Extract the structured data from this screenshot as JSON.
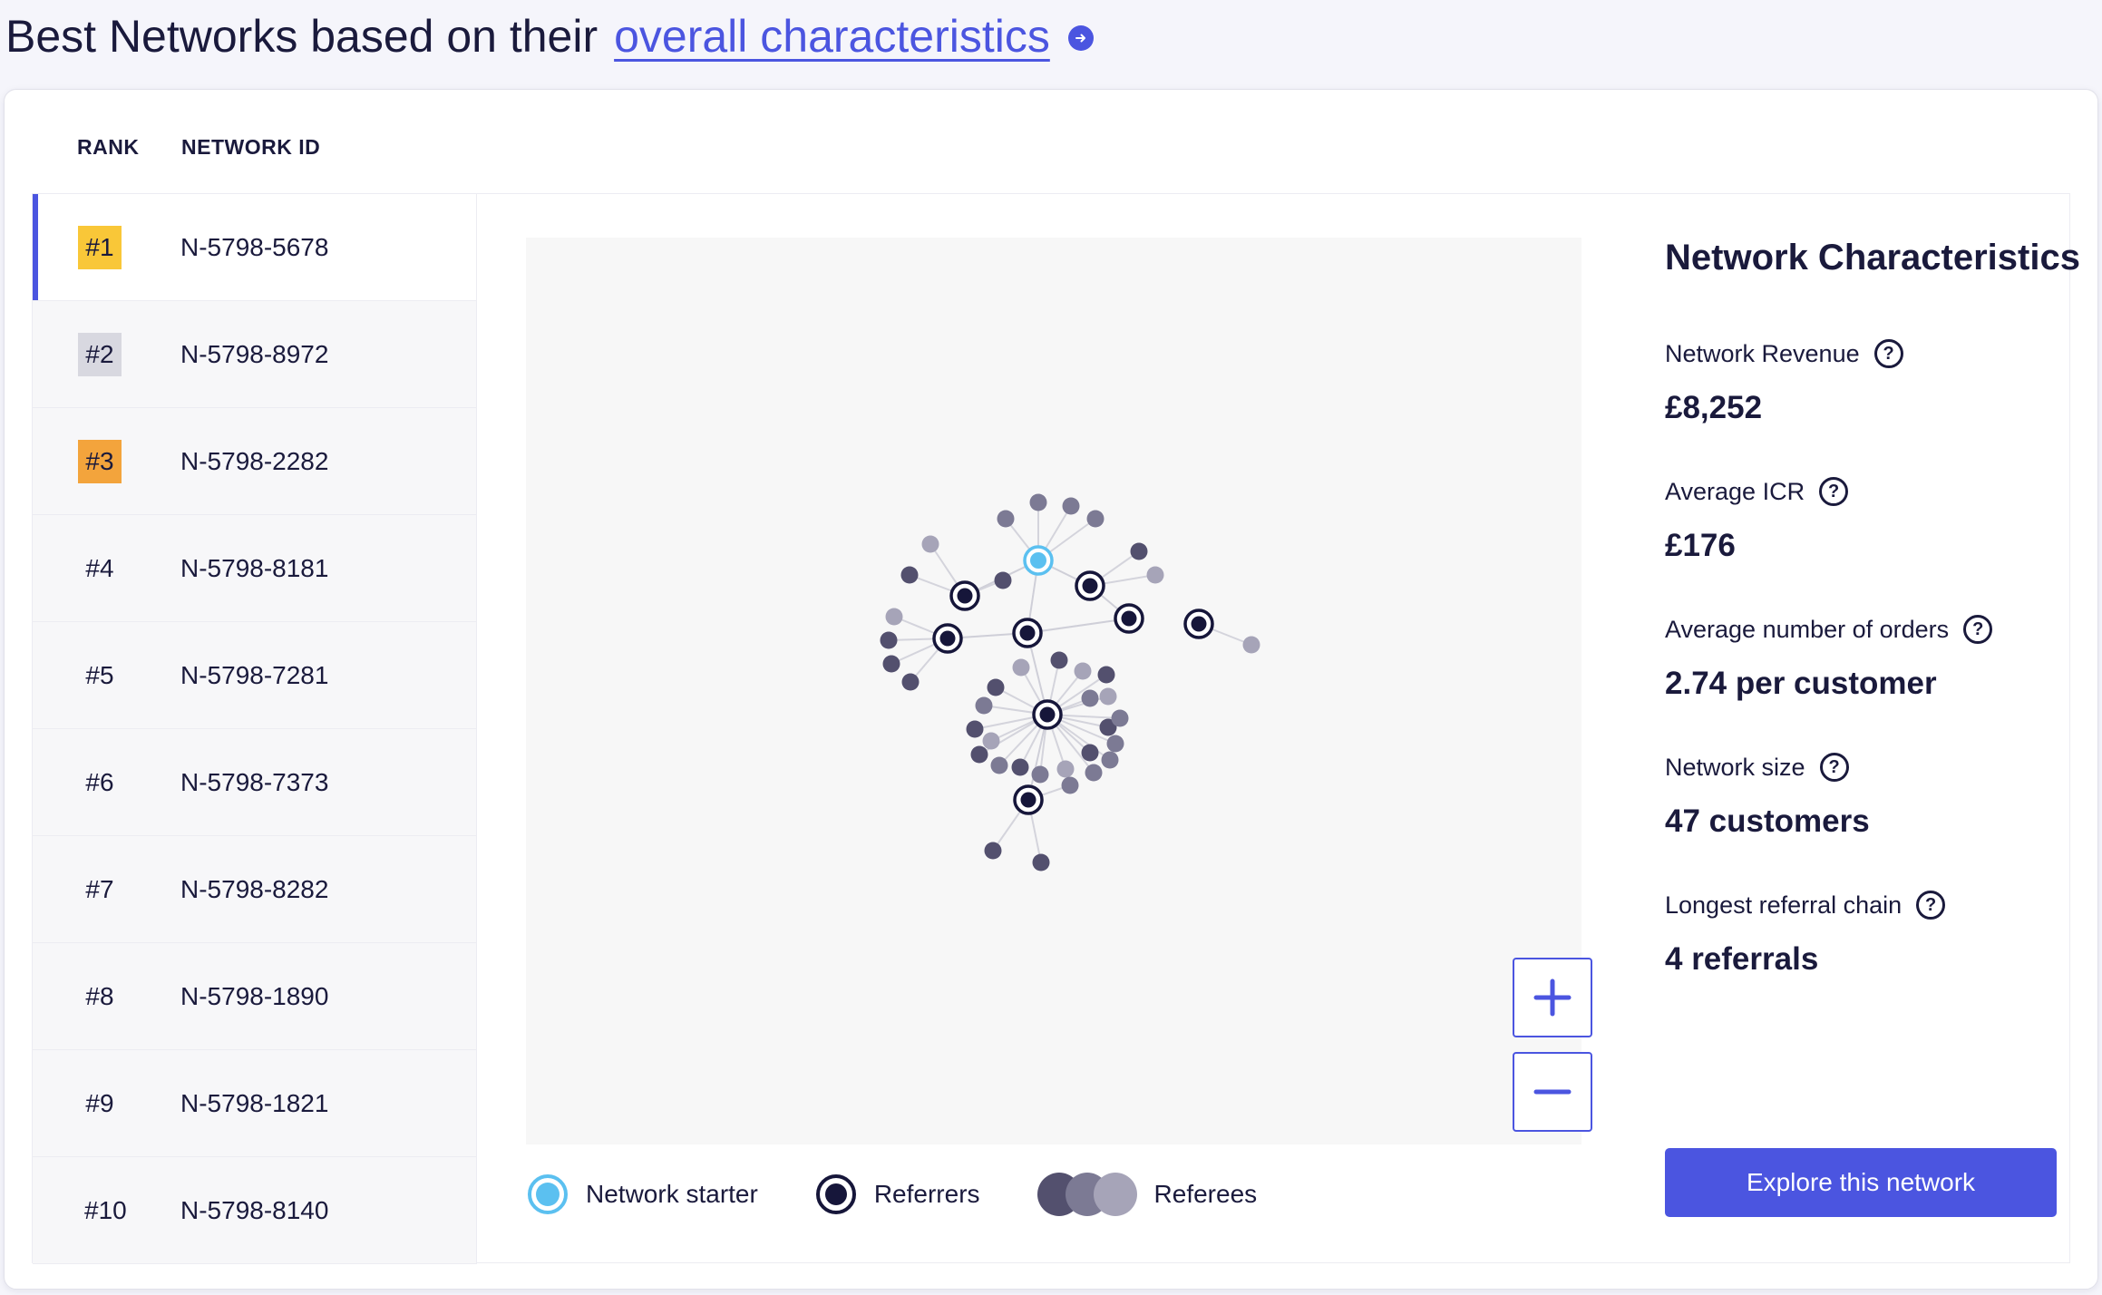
{
  "header": {
    "title": "Best Networks based on their",
    "link_text": "overall characteristics"
  },
  "columns": {
    "rank": "RANK",
    "network_id": "NETWORK ID"
  },
  "ranks": [
    {
      "rank": "#1",
      "id": "N-5798-5678",
      "badge_color": "#f9c738",
      "selected": true
    },
    {
      "rank": "#2",
      "id": "N-5798-8972",
      "badge_color": "#d8d8e0",
      "selected": false
    },
    {
      "rank": "#3",
      "id": "N-5798-2282",
      "badge_color": "#f3a43c",
      "selected": false
    },
    {
      "rank": "#4",
      "id": "N-5798-8181",
      "badge_color": "",
      "selected": false
    },
    {
      "rank": "#5",
      "id": "N-5798-7281",
      "badge_color": "",
      "selected": false
    },
    {
      "rank": "#6",
      "id": "N-5798-7373",
      "badge_color": "",
      "selected": false
    },
    {
      "rank": "#7",
      "id": "N-5798-8282",
      "badge_color": "",
      "selected": false
    },
    {
      "rank": "#8",
      "id": "N-5798-1890",
      "badge_color": "",
      "selected": false
    },
    {
      "rank": "#9",
      "id": "N-5798-1821",
      "badge_color": "",
      "selected": false
    },
    {
      "rank": "#10",
      "id": "N-5798-8140",
      "badge_color": "",
      "selected": false
    }
  ],
  "legend": {
    "starter": "Network starter",
    "referrers": "Referrers",
    "referees": "Referees"
  },
  "characteristics": {
    "title": "Network Characteristics",
    "revenue_label": "Network Revenue",
    "revenue_value": "£8,252",
    "icr_label": "Average ICR",
    "icr_value": "£176",
    "orders_label": "Average number of orders",
    "orders_value": "2.74 per customer",
    "size_label": "Network size",
    "size_value": "47 customers",
    "chain_label": "Longest referral chain",
    "chain_value": "4 referrals"
  },
  "explore_button": "Explore this network",
  "colors": {
    "accent": "#4b55e0",
    "starter": "#5bc0f0",
    "referrer": "#16163a",
    "referee_dark": "#53506e",
    "referee_mid": "#7c7a94",
    "referee_light": "#a6a4b8"
  }
}
